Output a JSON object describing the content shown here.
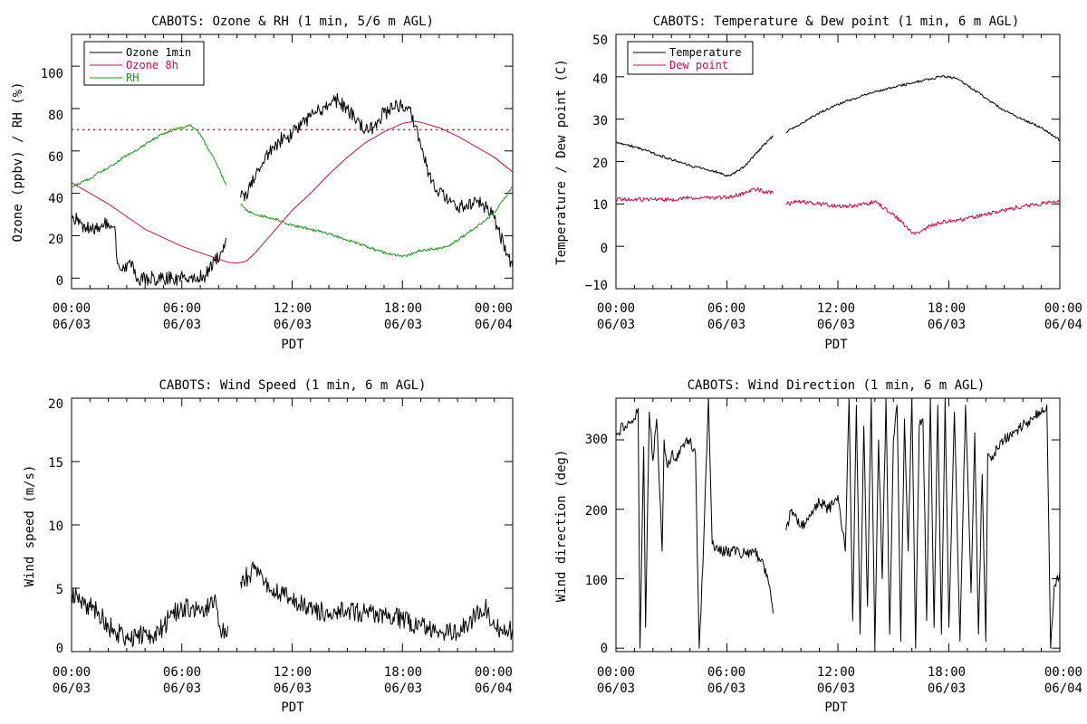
{
  "colors": {
    "black": "#000000",
    "crimson": "#d40a4b",
    "green": "#1a9a1a",
    "red_dot": "#e01010"
  },
  "chart_data": [
    {
      "type": "line",
      "title": "CABOTS: Ozone & RH (1 min, 5/6 m AGL)",
      "xlabel": "PDT",
      "ylabel": "Ozone (ppbv) / RH (%)",
      "xlim": [
        0,
        24
      ],
      "ylim": [
        -5,
        115
      ],
      "xticks": [
        0,
        6,
        12,
        18,
        24
      ],
      "xtick_labels": [
        [
          "00:00",
          "06/03"
        ],
        [
          "06:00",
          "06/03"
        ],
        [
          "12:00",
          "06/03"
        ],
        [
          "18:00",
          "06/03"
        ],
        [
          "00:00",
          "06/04"
        ]
      ],
      "yticks": [
        0,
        20,
        40,
        60,
        80,
        100
      ],
      "ytick_labels": [
        "0",
        "20",
        "40",
        "60",
        "80",
        "100"
      ],
      "grid": false,
      "legend": "top-left",
      "reference_line": {
        "y": 70,
        "style": "dotted",
        "color": "#e01010"
      },
      "series": [
        {
          "name": "Ozone 1min",
          "color": "#000000",
          "noise": 3.5,
          "seed": 11,
          "x": [
            0,
            0.3,
            0.8,
            1.2,
            1.6,
            2.0,
            2.2,
            2.4,
            2.45,
            2.6,
            2.9,
            3.2,
            3.4,
            3.6,
            4.5,
            5.5,
            6.5,
            7.2,
            7.5,
            7.8,
            8.1,
            8.4,
            null,
            9.2,
            9.5,
            10.0,
            10.5,
            11.0,
            11.5,
            12.0,
            12.5,
            13.0,
            13.5,
            14.0,
            14.5,
            15.0,
            15.5,
            16.0,
            16.5,
            17.0,
            17.5,
            18.0,
            18.4,
            18.7,
            19.0,
            19.3,
            19.6,
            20.0,
            20.5,
            21.0,
            21.5,
            22.0,
            22.5,
            23.0,
            23.5,
            24.0
          ],
          "y": [
            30,
            27,
            24,
            22,
            24,
            26,
            24,
            20,
            10,
            5,
            3,
            8,
            2,
            0,
            0,
            0,
            0,
            0.5,
            3,
            8,
            12,
            19,
            null,
            38,
            40,
            47,
            55,
            62,
            66,
            68,
            72,
            76,
            79,
            82,
            84,
            80,
            74,
            70,
            72,
            78,
            80,
            82,
            80,
            72,
            62,
            53,
            46,
            40,
            36,
            34,
            35,
            37,
            34,
            28,
            16,
            5
          ]
        },
        {
          "name": "Ozone 8h",
          "color": "#d40a4b",
          "noise": 0,
          "seed": 0,
          "x": [
            0,
            1,
            2,
            3,
            4,
            5,
            6,
            7,
            8,
            8.5,
            9,
            9.5,
            10,
            11,
            12,
            13,
            14,
            15,
            16,
            17,
            18,
            18.7,
            19,
            20,
            21,
            22,
            23,
            24
          ],
          "y": [
            45,
            40,
            35,
            29,
            23,
            19,
            15,
            12,
            9,
            7.5,
            7,
            8,
            12,
            22,
            32,
            40,
            49,
            57,
            64,
            69,
            73,
            74,
            73.5,
            71,
            67,
            62,
            57,
            50
          ]
        },
        {
          "name": "RH",
          "color": "#1a9a1a",
          "noise": 0.6,
          "seed": 23,
          "x": [
            0,
            0.5,
            1.0,
            1.5,
            2.0,
            2.5,
            3.0,
            3.5,
            4.0,
            4.5,
            5.0,
            5.5,
            6.0,
            6.5,
            7.0,
            7.5,
            8.0,
            8.4,
            null,
            9.2,
            9.5,
            10.0,
            11.0,
            12.0,
            13.0,
            14.0,
            15.0,
            16.0,
            17.0,
            18.0,
            19.0,
            20.0,
            20.5,
            21.0,
            21.5,
            22.0,
            22.5,
            23.0,
            23.5,
            24.0
          ],
          "y": [
            43,
            45,
            47,
            50,
            52,
            55,
            58,
            60,
            63,
            66,
            68,
            70,
            71,
            72,
            68,
            60,
            52,
            44,
            null,
            35,
            32,
            30,
            28,
            25,
            23,
            21,
            18,
            15,
            12,
            10,
            13,
            14,
            15,
            18,
            21,
            24,
            27,
            31,
            37,
            43
          ]
        }
      ]
    },
    {
      "type": "line",
      "title": "CABOTS: Temperature & Dew point (1 min, 6 m AGL)",
      "xlabel": "PDT",
      "ylabel": "Temperature / Dew point (C)",
      "xlim": [
        0,
        24
      ],
      "ylim": [
        -10,
        50
      ],
      "xticks": [
        0,
        6,
        12,
        18,
        24
      ],
      "xtick_labels": [
        [
          "00:00",
          "06/03"
        ],
        [
          "06:00",
          "06/03"
        ],
        [
          "12:00",
          "06/03"
        ],
        [
          "18:00",
          "06/03"
        ],
        [
          "00:00",
          "06/04"
        ]
      ],
      "yticks": [
        -10,
        0,
        10,
        20,
        30,
        40,
        50
      ],
      "ytick_labels": [
        "−10",
        "0",
        "10",
        "20",
        "30",
        "40",
        "50"
      ],
      "grid": false,
      "legend": "top-left",
      "series": [
        {
          "name": "Temperature",
          "color": "#000000",
          "noise": 0.3,
          "seed": 5,
          "x": [
            0,
            1,
            2,
            3,
            4,
            5,
            5.5,
            6,
            6.5,
            7,
            7.5,
            8,
            8.5,
            null,
            9.2,
            10,
            11,
            12,
            13,
            14,
            15,
            16,
            17,
            17.5,
            18,
            18.5,
            19,
            20,
            21,
            22,
            23,
            23.5,
            24
          ],
          "y": [
            24.5,
            23.5,
            22,
            20.5,
            19,
            18,
            17.5,
            16.5,
            17.5,
            19,
            21.5,
            24,
            26,
            null,
            27,
            29,
            31.5,
            33.5,
            35,
            36.5,
            37.5,
            38.5,
            39.5,
            40,
            40,
            39.5,
            38,
            35,
            32,
            30,
            28,
            26.5,
            25
          ]
        },
        {
          "name": "Dew point",
          "color": "#d40a4b",
          "noise": 0.5,
          "seed": 9,
          "x": [
            0,
            1,
            2,
            3,
            4,
            5,
            6,
            7,
            7.5,
            8,
            8.5,
            null,
            9.2,
            10,
            11,
            12,
            13,
            14,
            14.5,
            15,
            15.5,
            16,
            16.5,
            17,
            17.5,
            18,
            19,
            20,
            21,
            22,
            23,
            24
          ],
          "y": [
            11,
            11,
            11,
            11,
            11.5,
            11.5,
            11.5,
            12.5,
            13.5,
            13,
            12.5,
            null,
            10,
            10.5,
            10,
            9.5,
            9.5,
            10.5,
            9,
            7.5,
            5.5,
            3,
            3.5,
            5,
            5.5,
            6,
            6.5,
            7.5,
            8.5,
            9.5,
            10,
            11
          ]
        }
      ]
    },
    {
      "type": "line",
      "title": "CABOTS: Wind Speed (1 min, 6 m AGL)",
      "xlabel": "PDT",
      "ylabel": "Wind speed (m/s)",
      "xlim": [
        0,
        24
      ],
      "ylim": [
        0,
        20
      ],
      "xticks": [
        0,
        6,
        12,
        18,
        24
      ],
      "xtick_labels": [
        [
          "00:00",
          "06/03"
        ],
        [
          "06:00",
          "06/03"
        ],
        [
          "12:00",
          "06/03"
        ],
        [
          "18:00",
          "06/03"
        ],
        [
          "00:00",
          "06/04"
        ]
      ],
      "yticks": [
        0,
        5,
        10,
        15,
        20
      ],
      "ytick_labels": [
        "0",
        "5",
        "10",
        "15",
        "20"
      ],
      "grid": false,
      "series": [
        {
          "name": "",
          "color": "#000000",
          "noise": 0.8,
          "seed": 31,
          "x": [
            0,
            0.5,
            1.0,
            1.5,
            2.0,
            2.5,
            3.0,
            3.5,
            4.0,
            4.5,
            5.0,
            5.5,
            6.0,
            6.5,
            7.0,
            7.5,
            7.8,
            8.0,
            8.2,
            8.4,
            8.5,
            null,
            9.2,
            9.6,
            10.0,
            10.5,
            11.0,
            11.5,
            12.0,
            13.0,
            14.0,
            15.0,
            16.0,
            17.0,
            18.0,
            19.0,
            20.0,
            21.0,
            21.5,
            22.0,
            22.5,
            23.0,
            23.5,
            24.0
          ],
          "y": [
            4.5,
            4,
            3.5,
            3,
            2,
            1.5,
            1,
            1.2,
            1.5,
            1.2,
            2,
            3,
            3.5,
            3.5,
            3,
            3.5,
            4.5,
            2,
            1.5,
            1.2,
            2,
            null,
            5.5,
            6,
            6.5,
            5.5,
            5,
            4.5,
            4,
            3.5,
            3,
            3.2,
            3,
            3,
            2.5,
            2,
            1.5,
            1.5,
            2,
            3,
            3.5,
            2,
            1.5,
            1.8
          ]
        }
      ]
    },
    {
      "type": "line",
      "title": "CABOTS: Wind Direction (1 min, 6 m AGL)",
      "xlabel": "PDT",
      "ylabel": "Wind direction (deg)",
      "xlim": [
        0,
        24
      ],
      "ylim": [
        -5,
        360
      ],
      "xticks": [
        0,
        6,
        12,
        18,
        24
      ],
      "xtick_labels": [
        [
          "00:00",
          "06/03"
        ],
        [
          "06:00",
          "06/03"
        ],
        [
          "12:00",
          "06/03"
        ],
        [
          "18:00",
          "06/03"
        ],
        [
          "00:00",
          "06/04"
        ]
      ],
      "yticks": [
        0,
        100,
        200,
        300
      ],
      "ytick_labels": [
        "0",
        "100",
        "200",
        "300"
      ],
      "grid": false,
      "series": [
        {
          "name": "",
          "color": "#000000",
          "noise": 8,
          "seed": 47,
          "x": [
            0,
            0.5,
            1.0,
            1.2,
            1.3,
            1.5,
            1.6,
            1.8,
            2.0,
            2.2,
            2.5,
            2.6,
            2.8,
            3.0,
            3.2,
            3.5,
            4.0,
            4.3,
            4.5,
            4.7,
            5.0,
            5.2,
            5.5,
            6.0,
            6.5,
            7.0,
            7.5,
            8.0,
            8.3,
            8.5,
            null,
            9.2,
            9.5,
            10.0,
            10.5,
            11.0,
            11.5,
            12.0,
            12.4,
            12.6,
            12.8,
            13.0,
            13.2,
            13.4,
            13.6,
            13.8,
            14.0,
            14.2,
            14.4,
            14.6,
            14.8,
            15.0,
            15.2,
            15.4,
            15.6,
            15.8,
            16.0,
            16.2,
            16.4,
            16.6,
            16.8,
            17.0,
            17.2,
            17.4,
            17.6,
            17.8,
            18.0,
            18.3,
            18.6,
            18.9,
            19.2,
            19.4,
            19.6,
            19.8,
            20.0,
            20.1,
            20.3,
            20.6,
            21.0,
            21.5,
            22.0,
            22.5,
            23.0,
            23.3,
            23.5,
            23.7,
            24.0
          ],
          "y": [
            310,
            320,
            330,
            345,
            0,
            290,
            30,
            340,
            270,
            330,
            140,
            300,
            260,
            280,
            270,
            290,
            300,
            280,
            0,
            120,
            360,
            150,
            140,
            140,
            140,
            135,
            140,
            120,
            90,
            50,
            null,
            170,
            200,
            175,
            190,
            210,
            200,
            220,
            140,
            360,
            40,
            350,
            20,
            320,
            60,
            360,
            0,
            300,
            100,
            360,
            20,
            300,
            350,
            10,
            330,
            140,
            360,
            0,
            320,
            330,
            40,
            360,
            30,
            350,
            20,
            360,
            30,
            340,
            10,
            350,
            80,
            310,
            20,
            250,
            10,
            280,
            270,
            290,
            300,
            310,
            320,
            330,
            340,
            350,
            0,
            90,
            110
          ]
        }
      ]
    }
  ]
}
